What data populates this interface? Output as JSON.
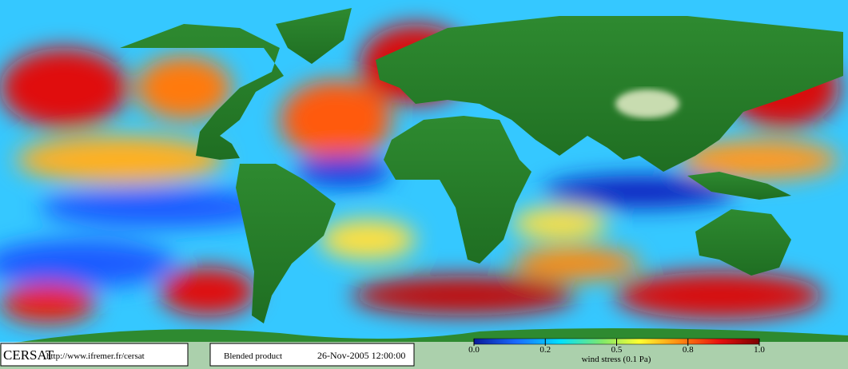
{
  "logo": "CERSAT",
  "url": "http://www.ifremer.fr/cersat",
  "product": "Blended product",
  "datetime": "26-Nov-2005 12:00:00",
  "colorbar": {
    "ticks": [
      {
        "value": 0,
        "label": "0.0"
      },
      0.2,
      0.5,
      0.8,
      {
        "value": 1,
        "label": "1.0"
      }
    ],
    "label": "wind stress (0.1 Pa)"
  }
}
